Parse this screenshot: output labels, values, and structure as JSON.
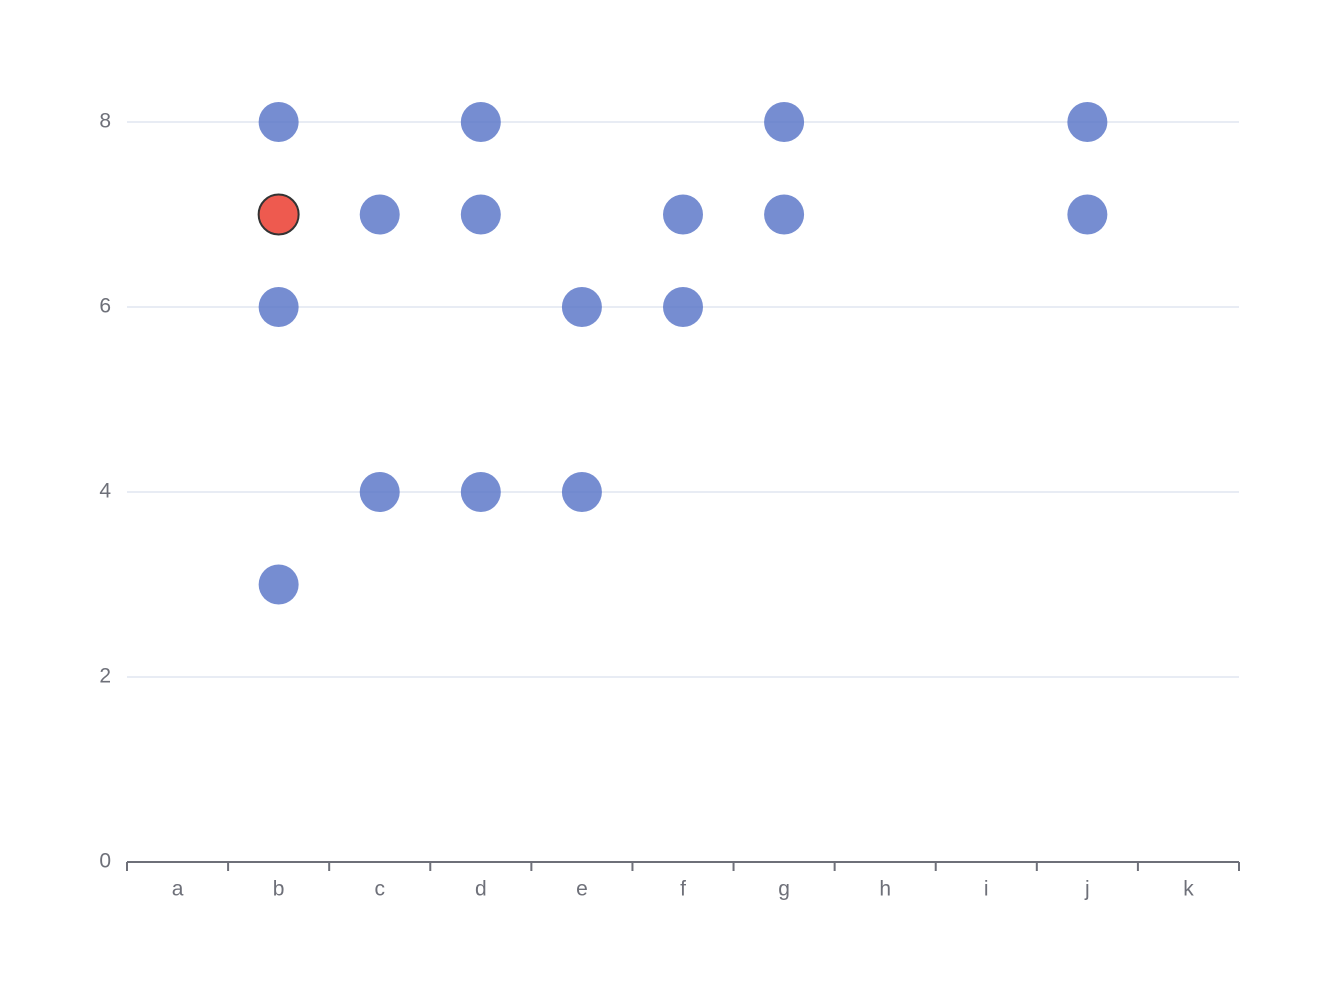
{
  "chart_data": {
    "type": "scatter",
    "categories": [
      "a",
      "b",
      "c",
      "d",
      "e",
      "f",
      "g",
      "h",
      "i",
      "j",
      "k"
    ],
    "series": [
      {
        "color": "#5470c6",
        "x": [
          "b",
          "d",
          "g",
          "j",
          "c",
          "d",
          "f",
          "g",
          "j",
          "b",
          "e",
          "f",
          "c",
          "d",
          "e",
          "b"
        ],
        "values": [
          8,
          8,
          8,
          8,
          7,
          7,
          7,
          7,
          7,
          6,
          6,
          6,
          4,
          4,
          4,
          3
        ]
      },
      {
        "color": "#ee5a4f",
        "x": [
          "b"
        ],
        "values": [
          7
        ]
      }
    ],
    "ylim": [
      0,
      8
    ],
    "yticks": [
      0,
      2,
      4,
      6,
      8
    ],
    "grid": true
  }
}
